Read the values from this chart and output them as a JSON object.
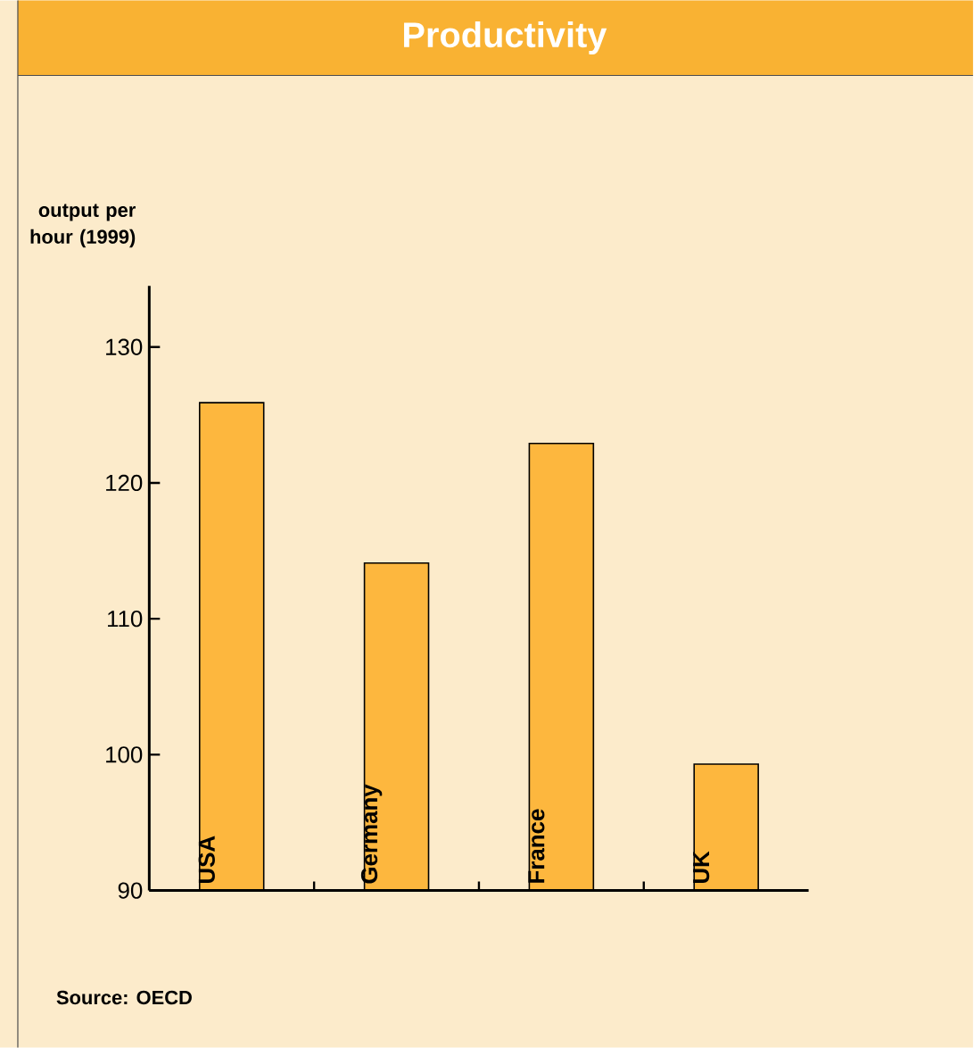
{
  "chart_data": {
    "type": "bar",
    "title": "Productivity",
    "ylabel": "output per hour (1999)",
    "categories": [
      "USA",
      "Germany",
      "France",
      "UK"
    ],
    "values": [
      125.9,
      114.1,
      122.9,
      99.3
    ],
    "color": "#fdb73e",
    "ylim": [
      90,
      134.5
    ],
    "yticks": [
      90,
      100,
      110,
      120,
      130
    ],
    "annotations": [
      "Source: OECD"
    ]
  }
}
